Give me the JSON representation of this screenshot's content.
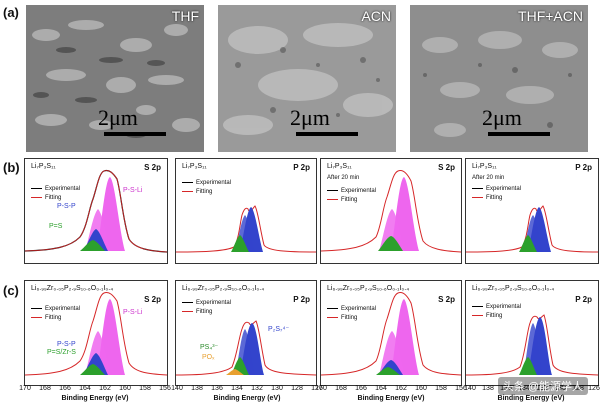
{
  "row_labels": {
    "a": "(a)",
    "b": "(b)",
    "c": "(c)"
  },
  "sem": [
    {
      "label": "THF",
      "scale": "2μm"
    },
    {
      "label": "ACN",
      "scale": "2μm"
    },
    {
      "label": "THF+ACN",
      "scale": "2μm"
    }
  ],
  "legend": {
    "exp": "Experimental",
    "fit": "Fitting"
  },
  "row_b": [
    {
      "title": "Li₇P₃S₁₁",
      "label": "S 2p",
      "note": "",
      "annotations": [
        "P-S-P",
        "P-S-Li",
        "P=S"
      ]
    },
    {
      "title": "Li₇P₃S₁₁",
      "label": "P 2p",
      "note": "",
      "annotations": []
    },
    {
      "title": "Li₇P₃S₁₁",
      "label": "S 2p",
      "note": "After 20 min",
      "annotations": []
    },
    {
      "title": "Li₇P₃S₁₁",
      "label": "P 2p",
      "note": "After 20 min",
      "annotations": []
    }
  ],
  "row_c": [
    {
      "title": "Li₆.₉₉Zr₀.₀₅P₂.₉S₁₀.₆O₀.₁I₀.₄",
      "label": "S 2p",
      "note": "",
      "annotations": [
        "P-S-Li",
        "P-S-P",
        "P=S/Zr-S"
      ]
    },
    {
      "title": "Li₆.₉₉Zr₀.₀₅P₂.₉S₁₀.₆O₀.₁I₀.₄",
      "label": "P 2p",
      "note": "",
      "annotations": [
        "P₂S₇⁴⁻",
        "PS₄³⁻",
        "POₓ"
      ]
    },
    {
      "title": "Li₆.₉₉Zr₀.₀₅P₂.₉S₁₀.₆O₀.₁I₀.₄",
      "label": "S 2p",
      "note": "",
      "annotations": []
    },
    {
      "title": "Li₆.₉₉Zr₀.₀₅P₂.₉S₁₀.₆O₀.₁I₀.₄",
      "label": "P 2p",
      "note": "",
      "annotations": []
    }
  ],
  "axis_s2p": {
    "ticks": [
      "170",
      "168",
      "166",
      "164",
      "162",
      "160",
      "158",
      "156"
    ],
    "title": "Binding Energy (eV)"
  },
  "axis_p2p": {
    "ticks": [
      "140",
      "138",
      "136",
      "134",
      "132",
      "130",
      "128",
      "126"
    ],
    "title": "Binding Energy (eV)"
  },
  "watermark": "头条 @能源学人",
  "colors": {
    "exp": "#000000",
    "fit": "#d62728",
    "pspli": "#ee66ee",
    "psp": "#3344cc",
    "pes": "#2ca02c",
    "ps4": "#2a8a2a",
    "p2s7": "#3344cc",
    "pox": "#e8a030"
  }
}
